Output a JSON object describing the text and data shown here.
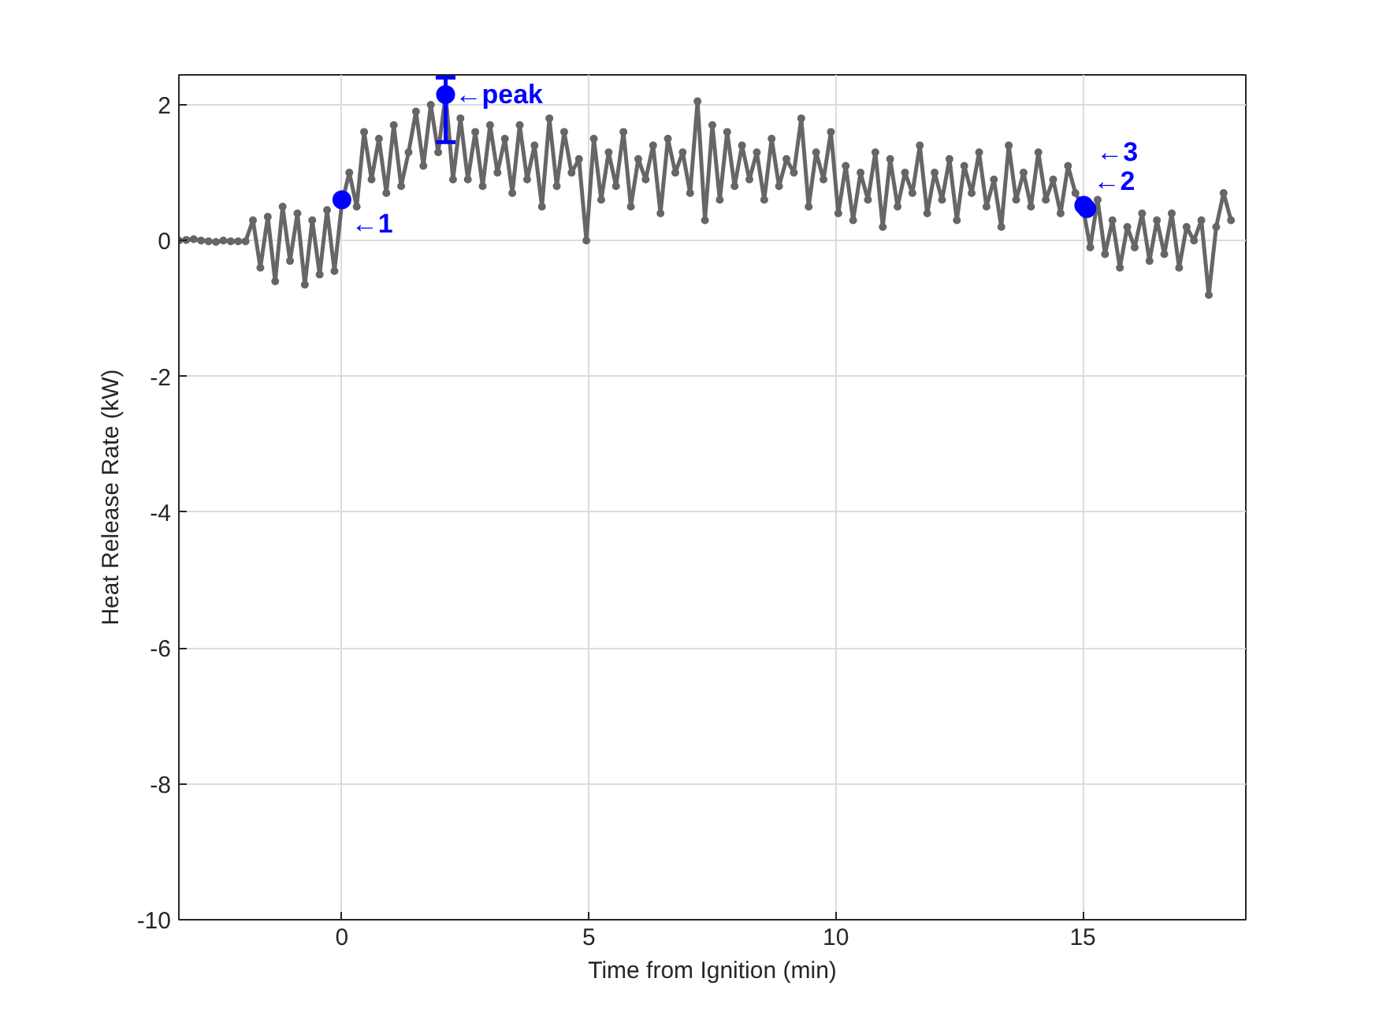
{
  "chart_data": {
    "type": "line",
    "xlabel": "Time from Ignition (min)",
    "ylabel": "Heat Release Rate (kW)",
    "xlim": [
      -3.3,
      18.3
    ],
    "ylim": [
      -10,
      2.44
    ],
    "xticks": [
      0,
      5,
      10,
      15
    ],
    "yticks": [
      -10,
      -8,
      -6,
      -4,
      -2,
      0,
      2
    ],
    "grid": true,
    "marker": "circle",
    "line_style": "solid",
    "series": [
      {
        "color": "#666666",
        "x": [
          -3.3,
          -3.15,
          -3,
          -2.85,
          -2.7,
          -2.55,
          -2.4,
          -2.25,
          -2.1,
          -1.95,
          -1.8,
          -1.65,
          -1.5,
          -1.35,
          -1.2,
          -1.05,
          -0.9,
          -0.75,
          -0.6,
          -0.45,
          -0.3,
          -0.15,
          0,
          0.15,
          0.3,
          0.45,
          0.6,
          0.75,
          0.9,
          1.05,
          1.2,
          1.35,
          1.5,
          1.65,
          1.8,
          1.95,
          2.1,
          2.25,
          2.4,
          2.55,
          2.7,
          2.85,
          3,
          3.15,
          3.3,
          3.45,
          3.6,
          3.75,
          3.9,
          4.05,
          4.2,
          4.35,
          4.5,
          4.65,
          4.8,
          4.95,
          5.1,
          5.25,
          5.4,
          5.55,
          5.7,
          5.85,
          6,
          6.15,
          6.3,
          6.45,
          6.6,
          6.75,
          6.9,
          7.05,
          7.2,
          7.35,
          7.5,
          7.65,
          7.8,
          7.95,
          8.1,
          8.25,
          8.4,
          8.55,
          8.7,
          8.85,
          9,
          9.15,
          9.3,
          9.45,
          9.6,
          9.75,
          9.9,
          10.05,
          10.2,
          10.35,
          10.5,
          10.65,
          10.8,
          10.95,
          11.1,
          11.25,
          11.4,
          11.55,
          11.7,
          11.85,
          12,
          12.15,
          12.3,
          12.45,
          12.6,
          12.75,
          12.9,
          13.05,
          13.2,
          13.35,
          13.5,
          13.65,
          13.8,
          13.95,
          14.1,
          14.25,
          14.4,
          14.55,
          14.7,
          14.85,
          15,
          15.15,
          15.3,
          15.45,
          15.6,
          15.75,
          15.9,
          16.05,
          16.2,
          16.35,
          16.5,
          16.65,
          16.8,
          16.95,
          17.1,
          17.25,
          17.4,
          17.55,
          17.7,
          17.85,
          18
        ],
        "values": [
          0,
          0.01,
          0.02,
          0,
          -0.01,
          -0.02,
          0,
          -0.01,
          -0.01,
          -0.01,
          0.3,
          -0.4,
          0.35,
          -0.6,
          0.5,
          -0.3,
          0.4,
          -0.65,
          0.3,
          -0.5,
          0.45,
          -0.45,
          0.55,
          1.0,
          0.5,
          1.6,
          0.9,
          1.5,
          0.7,
          1.7,
          0.8,
          1.3,
          1.9,
          1.1,
          2.0,
          1.3,
          2.15,
          0.9,
          1.8,
          0.9,
          1.6,
          0.8,
          1.7,
          1.0,
          1.5,
          0.7,
          1.7,
          0.9,
          1.4,
          0.5,
          1.8,
          0.8,
          1.6,
          1.0,
          1.2,
          0.0,
          1.5,
          0.6,
          1.3,
          0.8,
          1.6,
          0.5,
          1.2,
          0.9,
          1.4,
          0.4,
          1.5,
          1.0,
          1.3,
          0.7,
          2.05,
          0.3,
          1.7,
          0.6,
          1.6,
          0.8,
          1.4,
          0.9,
          1.3,
          0.6,
          1.5,
          0.8,
          1.2,
          1.0,
          1.8,
          0.5,
          1.3,
          0.9,
          1.6,
          0.4,
          1.1,
          0.3,
          1.0,
          0.6,
          1.3,
          0.2,
          1.2,
          0.5,
          1.0,
          0.7,
          1.4,
          0.4,
          1.0,
          0.6,
          1.2,
          0.3,
          1.1,
          0.7,
          1.3,
          0.5,
          0.9,
          0.2,
          1.4,
          0.6,
          1.0,
          0.5,
          1.3,
          0.6,
          0.9,
          0.4,
          1.1,
          0.7,
          0.5,
          -0.1,
          0.6,
          -0.2,
          0.3,
          -0.4,
          0.2,
          -0.1,
          0.4,
          -0.3,
          0.3,
          -0.2,
          0.4,
          -0.4,
          0.2,
          0.0,
          0.3,
          -0.8,
          0.2,
          0.7,
          0.3
        ]
      },
      {
        "type": "scatter",
        "color": "#0000ff",
        "x": [
          0,
          2.1,
          15.02,
          15.08
        ],
        "values": [
          0.6,
          2.15,
          0.52,
          0.47
        ],
        "errors": [
          null,
          [
            1.45,
            2.4
          ],
          null,
          null
        ]
      }
    ],
    "annotations": [
      {
        "text": "←1",
        "x": 0,
        "y": 0.6
      },
      {
        "text": "←peak",
        "x": 2.1,
        "y": 2.15
      },
      {
        "text": "←2",
        "x": 15.02,
        "y": 0.52
      },
      {
        "text": "←3",
        "x": 15.08,
        "y": 0.47
      }
    ]
  }
}
